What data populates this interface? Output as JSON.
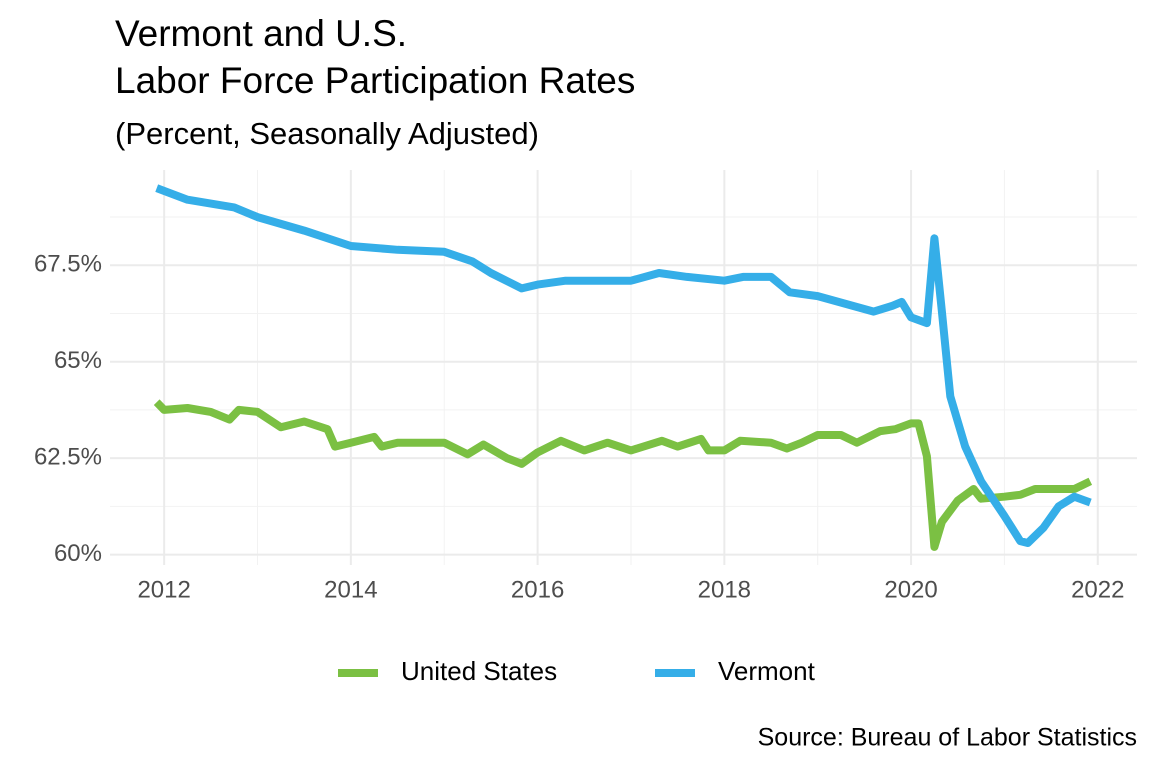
{
  "chart_data": {
    "type": "line",
    "title": [
      "Vermont and U.S.",
      "Labor Force Participation Rates"
    ],
    "subtitle": "(Percent, Seasonally Adjusted)",
    "caption": "Source: Bureau of Labor Statistics",
    "xlim": [
      2011.42,
      2022.42
    ],
    "xticks": [
      2012,
      2014,
      2016,
      2018,
      2020,
      2022
    ],
    "xminorticks": [
      2013,
      2015,
      2017,
      2019,
      2021
    ],
    "ylim": [
      59.73,
      69.97
    ],
    "yticks": [
      {
        "value": 60,
        "label": "60%"
      },
      {
        "value": 62.5,
        "label": "62.5%"
      },
      {
        "value": 65,
        "label": "65%"
      },
      {
        "value": 67.5,
        "label": "67.5%"
      }
    ],
    "yminorticks": [
      61.25,
      63.75,
      66.25,
      68.75
    ],
    "grid": true,
    "legend": "bottom",
    "series": [
      {
        "name": "United States",
        "color": "#7bc043",
        "x": [
          2011.92,
          2012.0,
          2012.25,
          2012.5,
          2012.7,
          2012.8,
          2013.0,
          2013.25,
          2013.5,
          2013.75,
          2013.83,
          2014.0,
          2014.25,
          2014.33,
          2014.5,
          2015.0,
          2015.25,
          2015.42,
          2015.67,
          2015.83,
          2016.0,
          2016.25,
          2016.5,
          2016.75,
          2017.0,
          2017.33,
          2017.5,
          2017.75,
          2017.83,
          2018.0,
          2018.17,
          2018.5,
          2018.67,
          2018.83,
          2019.0,
          2019.25,
          2019.42,
          2019.67,
          2019.83,
          2020.0,
          2020.08,
          2020.17,
          2020.25,
          2020.33,
          2020.5,
          2020.67,
          2020.75,
          2021.0,
          2021.17,
          2021.33,
          2021.5,
          2021.75,
          2021.92
        ],
        "values": [
          63.95,
          63.75,
          63.8,
          63.7,
          63.5,
          63.75,
          63.7,
          63.3,
          63.45,
          63.25,
          62.8,
          62.9,
          63.05,
          62.8,
          62.9,
          62.9,
          62.6,
          62.85,
          62.5,
          62.35,
          62.65,
          62.95,
          62.7,
          62.9,
          62.7,
          62.95,
          62.8,
          63.0,
          62.7,
          62.7,
          62.95,
          62.9,
          62.75,
          62.9,
          63.1,
          63.1,
          62.9,
          63.2,
          63.25,
          63.4,
          63.4,
          62.55,
          60.2,
          60.85,
          61.4,
          61.7,
          61.45,
          61.5,
          61.55,
          61.7,
          61.7,
          61.7,
          61.9
        ]
      },
      {
        "name": "Vermont",
        "color": "#35aee8",
        "x": [
          2011.92,
          2012.25,
          2012.5,
          2012.75,
          2013.0,
          2013.5,
          2014.0,
          2014.5,
          2015.0,
          2015.3,
          2015.5,
          2015.83,
          2016.0,
          2016.3,
          2017.0,
          2017.3,
          2017.6,
          2018.0,
          2018.2,
          2018.5,
          2018.7,
          2019.0,
          2019.3,
          2019.6,
          2019.8,
          2019.9,
          2020.0,
          2020.17,
          2020.25,
          2020.33,
          2020.42,
          2020.58,
          2020.75,
          2021.0,
          2021.17,
          2021.25,
          2021.42,
          2021.58,
          2021.75,
          2021.92
        ],
        "values": [
          69.5,
          69.2,
          69.1,
          69.0,
          68.75,
          68.4,
          68.0,
          67.9,
          67.85,
          67.6,
          67.3,
          66.9,
          67.0,
          67.1,
          67.1,
          67.3,
          67.2,
          67.1,
          67.2,
          67.2,
          66.8,
          66.7,
          66.5,
          66.3,
          66.45,
          66.55,
          66.15,
          66.0,
          68.2,
          66.3,
          64.1,
          62.8,
          61.9,
          61.0,
          60.35,
          60.3,
          60.7,
          61.25,
          61.5,
          61.35
        ]
      }
    ]
  }
}
